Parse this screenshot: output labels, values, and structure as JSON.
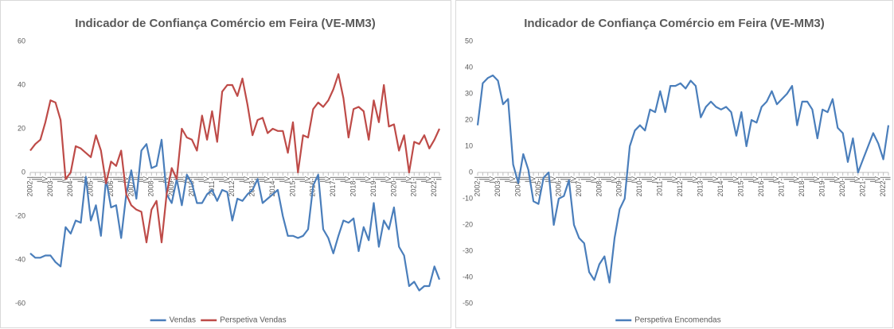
{
  "chart_data": [
    {
      "type": "line",
      "title": "Indicador de Confiança Comércio em Feira (VE-MM3)",
      "categories": [
        "2002-I",
        "II",
        "III",
        "IV",
        "2003-I",
        "II",
        "III",
        "IV",
        "2004-I",
        "II",
        "III",
        "IV",
        "2005-I",
        "II",
        "III",
        "IV",
        "2006-I",
        "II",
        "III",
        "IV",
        "2007-I",
        "II",
        "III",
        "IV",
        "2008-I",
        "II",
        "III",
        "IV",
        "2009-I",
        "II",
        "III",
        "IV",
        "2010-I",
        "II",
        "III",
        "IV",
        "2011-I",
        "II",
        "III",
        "IV",
        "2012-I",
        "II",
        "III",
        "IV",
        "2013-I",
        "II",
        "III",
        "IV",
        "2014-I",
        "II",
        "III",
        "IV",
        "2015-I",
        "II",
        "III",
        "IV",
        "2016-I",
        "II",
        "III",
        "IV",
        "2017-I",
        "II",
        "III",
        "IV",
        "2018-I",
        "II",
        "III",
        "IV",
        "2019-I",
        "II",
        "III",
        "IV",
        "2020-I",
        "II",
        "III",
        "IV",
        "2021-I",
        "II",
        "III",
        "IV",
        "2022-I",
        "II"
      ],
      "series": [
        {
          "name": "Vendas",
          "color": "#4a7ebb",
          "values": [
            -37,
            -39,
            -39,
            -38,
            -38,
            -41,
            -43,
            -25,
            -28,
            -22,
            -23,
            -2,
            -22,
            -15,
            -29,
            -3,
            -16,
            -15,
            -30,
            -10,
            1,
            -12,
            10,
            13,
            2,
            3,
            15,
            -10,
            -14,
            -3,
            -15,
            -1,
            -5,
            -14,
            -14,
            -10,
            -8,
            -13,
            -8,
            -9,
            -22,
            -12,
            -13,
            -10,
            -8,
            -3,
            -14,
            -12,
            -10,
            -8,
            -20,
            -29,
            -29,
            -30,
            -29,
            -26,
            -6,
            -1,
            -26,
            -30,
            -37,
            -29,
            -22,
            -23,
            -21,
            -36,
            -25,
            -31,
            -14,
            -34,
            -22,
            -26,
            -16,
            -34,
            -38,
            -52,
            -50,
            -54,
            -52,
            -52,
            -43,
            -49
          ]
        },
        {
          "name": "Perspetiva Vendas",
          "color": "#be4b48",
          "values": [
            10,
            13,
            15,
            23,
            33,
            32,
            24,
            -3,
            0,
            12,
            11,
            9,
            7,
            17,
            10,
            -5,
            5,
            3,
            10,
            -10,
            -15,
            -17,
            -18,
            -32,
            -17,
            -13,
            -32,
            -10,
            2,
            -3,
            20,
            16,
            15,
            10,
            26,
            15,
            28,
            14,
            37,
            40,
            40,
            35,
            43,
            31,
            17,
            24,
            25,
            18,
            20,
            19,
            19,
            9,
            23,
            0,
            17,
            16,
            29,
            32,
            30,
            33,
            38,
            45,
            34,
            16,
            29,
            30,
            28,
            15,
            33,
            23,
            40,
            21,
            22,
            10,
            17,
            0,
            14,
            13,
            17,
            11,
            15,
            20
          ]
        }
      ],
      "ylim": [
        -60,
        60
      ],
      "yticks": [
        -60,
        -40,
        -20,
        0,
        20,
        40,
        60
      ]
    },
    {
      "type": "line",
      "title": "Indicador de Confiança Comércio em Feira (VE-MM3)",
      "categories": [
        "2002-I",
        "II",
        "III",
        "IV",
        "2003-I",
        "II",
        "III",
        "IV",
        "2004-I",
        "II",
        "III",
        "IV",
        "2005-I",
        "II",
        "III",
        "IV",
        "2006-I",
        "II",
        "III",
        "IV",
        "2007-I",
        "II",
        "III",
        "IV",
        "2008-I",
        "II",
        "III",
        "IV",
        "2009-I",
        "II",
        "III",
        "IV",
        "2010-I",
        "II",
        "III",
        "IV",
        "2011-I",
        "II",
        "III",
        "IV",
        "2012-I",
        "II",
        "III",
        "IV",
        "2013-I",
        "II",
        "III",
        "IV",
        "2014-I",
        "II",
        "III",
        "IV",
        "2015-I",
        "II",
        "III",
        "IV",
        "2016-I",
        "II",
        "III",
        "IV",
        "2017-I",
        "II",
        "III",
        "IV",
        "2018-I",
        "II",
        "III",
        "IV",
        "2019-I",
        "II",
        "III",
        "IV",
        "2020-I",
        "II",
        "III",
        "IV",
        "2021-I",
        "II",
        "III",
        "IV",
        "2022-I",
        "II"
      ],
      "series": [
        {
          "name": "Perspetiva Encomendas",
          "color": "#4a7ebb",
          "values": [
            18,
            34,
            36,
            37,
            35,
            26,
            28,
            3,
            -4,
            7,
            1,
            -11,
            -12,
            -2,
            0,
            -20,
            -10,
            -9,
            -3,
            -20,
            -25,
            -27,
            -38,
            -41,
            -35,
            -32,
            -42,
            -25,
            -14,
            -10,
            10,
            16,
            18,
            16,
            24,
            23,
            31,
            23,
            33,
            33,
            34,
            32,
            35,
            33,
            21,
            25,
            27,
            25,
            24,
            25,
            23,
            14,
            23,
            10,
            20,
            19,
            25,
            27,
            31,
            26,
            28,
            30,
            33,
            18,
            27,
            27,
            24,
            13,
            24,
            23,
            28,
            17,
            15,
            4,
            13,
            0,
            5,
            10,
            15,
            11,
            5,
            18
          ]
        }
      ],
      "ylim": [
        -50,
        50
      ],
      "yticks": [
        -50,
        -40,
        -30,
        -20,
        -10,
        0,
        10,
        20,
        30,
        40,
        50
      ]
    }
  ]
}
